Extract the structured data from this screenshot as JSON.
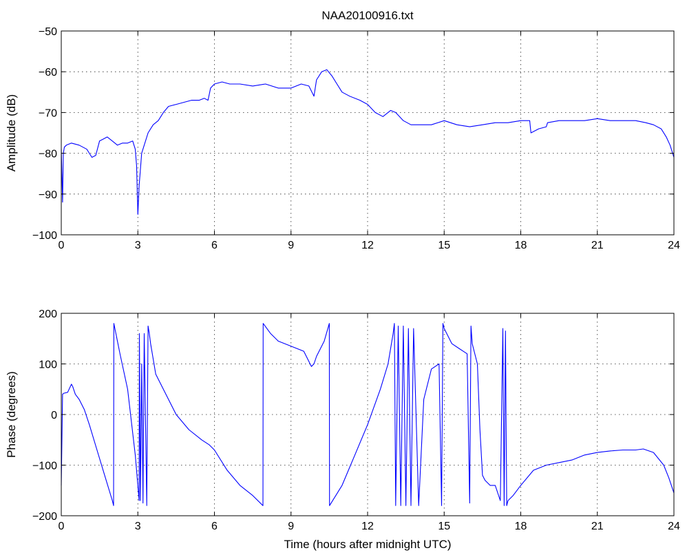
{
  "figure": {
    "title": "NAA20100916.txt",
    "xlabel": "Time (hours after midnight UTC)"
  },
  "chart_data": [
    {
      "type": "line",
      "title": "NAA20100916.txt",
      "xlabel": "",
      "ylabel": "Amplitude (dB)",
      "xlim": [
        0,
        24
      ],
      "ylim": [
        -100,
        -50
      ],
      "xticks": [
        0,
        3,
        6,
        9,
        12,
        15,
        18,
        21,
        24
      ],
      "yticks": [
        -100,
        -90,
        -80,
        -70,
        -60,
        -50
      ],
      "grid": true,
      "color": "#0000ff",
      "series": [
        {
          "x": [
            0,
            0.05,
            0.08,
            0.12,
            0.2,
            0.4,
            0.7,
            1.0,
            1.2,
            1.35,
            1.5,
            1.65,
            1.8,
            2.0,
            2.2,
            2.4,
            2.6,
            2.8,
            2.9,
            2.95,
            3.0,
            3.05,
            3.15,
            3.25,
            3.4,
            3.6,
            3.8,
            4.0,
            4.2,
            4.5,
            4.8,
            5.1,
            5.4,
            5.6,
            5.75,
            5.85,
            6.0,
            6.3,
            6.6,
            7.0,
            7.5,
            8.0,
            8.5,
            9.0,
            9.4,
            9.7,
            9.9,
            10.0,
            10.2,
            10.4,
            10.6,
            10.8,
            11.0,
            11.3,
            11.7,
            12.0,
            12.3,
            12.6,
            12.9,
            13.1,
            13.4,
            13.7,
            14.0,
            14.5,
            15.0,
            15.5,
            16.0,
            16.5,
            17.0,
            17.5,
            18.0,
            18.35,
            18.4,
            18.7,
            19.0,
            19.05,
            19.5,
            20.0,
            20.5,
            21.0,
            21.5,
            22.0,
            22.5,
            22.9,
            23.2,
            23.5,
            23.7,
            23.85,
            24.0
          ],
          "y": [
            -79,
            -92,
            -80,
            -78.5,
            -78,
            -77.5,
            -78,
            -79,
            -81,
            -80.5,
            -77,
            -76.5,
            -76,
            -77,
            -78,
            -77.5,
            -77.5,
            -77,
            -79,
            -83,
            -95,
            -88,
            -80,
            -78,
            -75,
            -73,
            -72,
            -70,
            -68.5,
            -68,
            -67.5,
            -67,
            -67,
            -66.5,
            -67,
            -64,
            -63,
            -62.5,
            -63,
            -63,
            -63.5,
            -63,
            -64,
            -64,
            -63,
            -63.5,
            -66,
            -62,
            -60,
            -59.5,
            -61,
            -63,
            -65,
            -66,
            -67,
            -68,
            -70,
            -71,
            -69.5,
            -70,
            -72,
            -73,
            -73,
            -73,
            -72,
            -73,
            -73.5,
            -73,
            -72.5,
            -72.5,
            -72,
            -72,
            -75,
            -74,
            -73.5,
            -72.5,
            -72,
            -72,
            -72,
            -71.5,
            -72,
            -72,
            -72,
            -72.5,
            -73,
            -74,
            -76,
            -78,
            -81
          ]
        }
      ]
    },
    {
      "type": "line",
      "title": "",
      "xlabel": "Time (hours after midnight UTC)",
      "ylabel": "Phase (degrees)",
      "xlim": [
        0,
        24
      ],
      "ylim": [
        -200,
        200
      ],
      "xticks": [
        0,
        3,
        6,
        9,
        12,
        15,
        18,
        21,
        24
      ],
      "yticks": [
        -200,
        -100,
        0,
        100,
        200
      ],
      "grid": true,
      "color": "#0000ff",
      "series": [
        {
          "x": [
            0,
            0.05,
            0.1,
            0.25,
            0.4,
            0.45,
            0.55,
            0.7,
            0.9,
            1.1,
            1.4,
            1.7,
            2.0,
            2.05,
            2.06,
            2.1,
            2.3,
            2.6,
            2.9,
            3.05,
            3.06,
            3.1,
            3.15,
            3.2,
            3.25,
            3.35,
            3.4,
            3.45,
            3.5,
            3.7,
            4.0,
            4.5,
            5.0,
            5.5,
            5.8,
            6.0,
            6.5,
            7.0,
            7.5,
            7.9,
            7.91,
            8.2,
            8.5,
            9.0,
            9.5,
            9.8,
            9.9,
            10.0,
            10.3,
            10.5,
            10.51,
            11.0,
            11.5,
            12.0,
            12.5,
            12.8,
            13.0,
            13.05,
            13.1,
            13.2,
            13.3,
            13.4,
            13.5,
            13.6,
            13.7,
            13.8,
            14.0,
            14.2,
            14.5,
            14.8,
            14.9,
            14.95,
            15.0,
            15.3,
            15.6,
            15.9,
            16.0,
            16.05,
            16.1,
            16.3,
            16.4,
            16.5,
            16.6,
            16.8,
            17.0,
            17.2,
            17.3,
            17.35,
            17.4,
            17.45,
            17.5,
            17.7,
            18.0,
            18.5,
            19.0,
            19.5,
            20.0,
            20.5,
            21.0,
            21.5,
            22.0,
            22.5,
            22.8,
            23.2,
            23.6,
            23.8,
            24.0
          ],
          "y": [
            -140,
            40,
            42,
            44,
            60,
            55,
            40,
            30,
            10,
            -20,
            -70,
            -120,
            -170,
            -180,
            180,
            170,
            120,
            50,
            -80,
            -170,
            160,
            -170,
            100,
            -175,
            160,
            -180,
            175,
            160,
            140,
            80,
            50,
            0,
            -30,
            -50,
            -60,
            -70,
            -110,
            -140,
            -160,
            -180,
            180,
            160,
            145,
            135,
            125,
            95,
            100,
            115,
            145,
            180,
            -180,
            -140,
            -80,
            -20,
            50,
            100,
            160,
            180,
            -180,
            175,
            -180,
            175,
            -180,
            170,
            -180,
            170,
            -180,
            30,
            90,
            100,
            -180,
            180,
            170,
            140,
            130,
            120,
            -175,
            175,
            140,
            100,
            -30,
            -120,
            -130,
            -140,
            -140,
            -170,
            170,
            -180,
            165,
            -180,
            -170,
            -160,
            -140,
            -110,
            -100,
            -95,
            -90,
            -80,
            -75,
            -72,
            -70,
            -70,
            -68,
            -75,
            -100,
            -125,
            -155
          ]
        }
      ]
    }
  ]
}
